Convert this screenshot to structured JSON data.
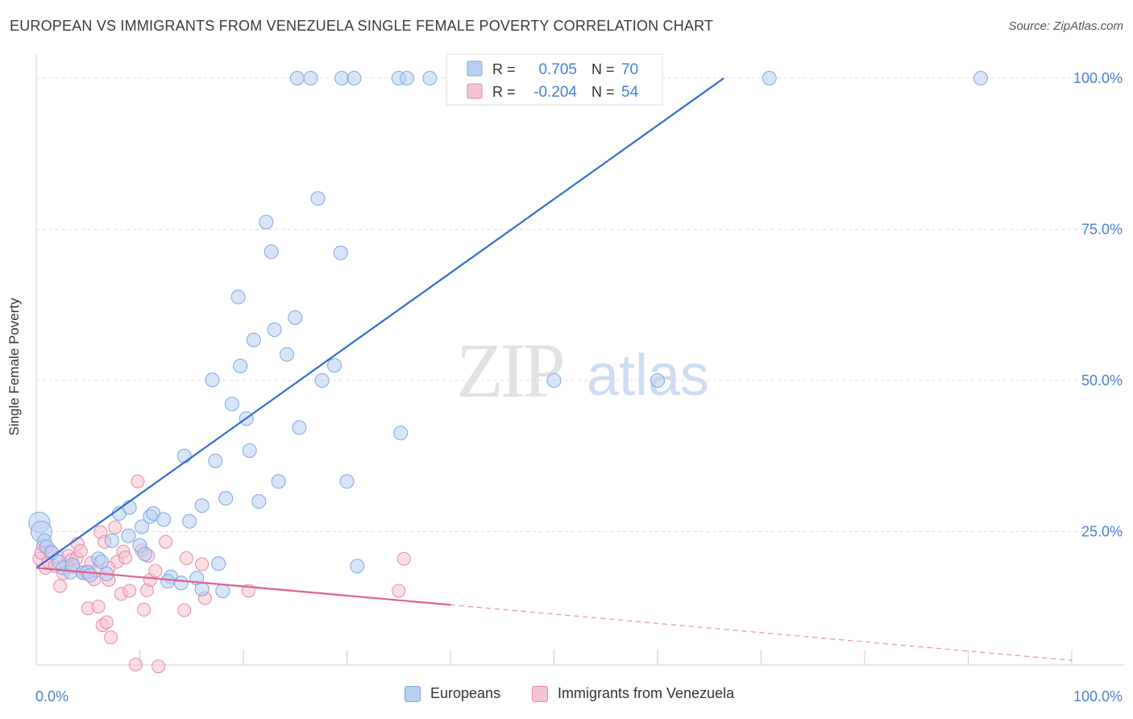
{
  "header": {
    "title": "EUROPEAN VS IMMIGRANTS FROM VENEZUELA SINGLE FEMALE POVERTY CORRELATION CHART",
    "source": "Source: ZipAtlas.com"
  },
  "watermark": {
    "zip": "ZIP",
    "atlas": "atlas"
  },
  "colors": {
    "blue_fill": "#b8d0f2",
    "blue_stroke": "#7fa8e0",
    "blue_line": "#2f6fcf",
    "pink_fill": "#f6c3d2",
    "pink_stroke": "#e88aa8",
    "pink_line": "#e0608e",
    "tick_label": "#4a7fd0",
    "grid": "#dddddd"
  },
  "stats_legend": {
    "rows": [
      {
        "r_label": "R =",
        "r_value": "0.705",
        "n_label": "N =",
        "n_value": "70"
      },
      {
        "r_label": "R =",
        "r_value": "-0.204",
        "n_label": "N =",
        "n_value": "54"
      }
    ]
  },
  "chart_data": {
    "type": "scatter",
    "xlabel": "",
    "ylabel": "Single Female Poverty",
    "xlim": [
      0,
      100
    ],
    "ylim": [
      0,
      100
    ],
    "x_tick_labels": [
      "0.0%",
      "100.0%"
    ],
    "y_tick_labels": [
      "25.0%",
      "50.0%",
      "75.0%",
      "100.0%"
    ],
    "y_ticks": [
      25,
      50,
      75,
      100
    ],
    "grid": true,
    "legend_position": "bottom-center",
    "series": [
      {
        "name": "Europeans",
        "color": "#b8d0f2",
        "r": 0.705,
        "n": 70,
        "trend": {
          "x": [
            0,
            66.4
          ],
          "y": [
            19.0,
            100
          ],
          "style": "solid"
        },
        "points": [
          [
            0.3,
            26.5
          ],
          [
            0.5,
            25
          ],
          [
            0.8,
            23.5
          ],
          [
            1.0,
            22.5
          ],
          [
            1.5,
            21.5
          ],
          [
            2.2,
            20
          ],
          [
            2.6,
            19
          ],
          [
            3.3,
            18.3
          ],
          [
            3.5,
            19.5
          ],
          [
            4.5,
            18.2
          ],
          [
            5.0,
            18.3
          ],
          [
            5.2,
            17.8
          ],
          [
            6,
            20.5
          ],
          [
            6.3,
            20
          ],
          [
            6.8,
            18
          ],
          [
            7.3,
            23.5
          ],
          [
            8.0,
            28
          ],
          [
            9.0,
            29
          ],
          [
            8.9,
            24.3
          ],
          [
            10,
            22.7
          ],
          [
            10.2,
            25.8
          ],
          [
            10.5,
            21.3
          ],
          [
            11,
            27.5
          ],
          [
            11.3,
            28
          ],
          [
            12.3,
            27
          ],
          [
            13,
            17.5
          ],
          [
            12.7,
            16.8
          ],
          [
            14,
            16.5
          ],
          [
            14.3,
            37.5
          ],
          [
            14.8,
            26.7
          ],
          [
            15.5,
            17.3
          ],
          [
            16,
            15.5
          ],
          [
            16,
            29.3
          ],
          [
            17,
            50.1
          ],
          [
            17.3,
            36.7
          ],
          [
            17.6,
            19.7
          ],
          [
            18,
            15.2
          ],
          [
            18.3,
            30.5
          ],
          [
            18.9,
            46.1
          ],
          [
            19.5,
            63.8
          ],
          [
            19.7,
            52.4
          ],
          [
            20.3,
            43.7
          ],
          [
            20.6,
            38.4
          ],
          [
            21,
            56.7
          ],
          [
            21.5,
            30
          ],
          [
            22.2,
            76.2
          ],
          [
            22.7,
            71.3
          ],
          [
            23,
            58.4
          ],
          [
            23.4,
            33.3
          ],
          [
            24.2,
            54.3
          ],
          [
            25,
            60.4
          ],
          [
            25.4,
            42.2
          ],
          [
            27.2,
            80.1
          ],
          [
            27.6,
            50
          ],
          [
            28.8,
            52.5
          ],
          [
            29.4,
            71.1
          ],
          [
            30.0,
            33.3
          ],
          [
            31.0,
            19.3
          ],
          [
            35.2,
            41.3
          ],
          [
            50,
            50
          ],
          [
            60,
            50
          ],
          [
            25.2,
            100
          ],
          [
            26.5,
            100
          ],
          [
            29.5,
            100
          ],
          [
            30.7,
            100
          ],
          [
            35.0,
            100
          ],
          [
            35.8,
            100
          ],
          [
            38.0,
            100
          ],
          [
            70.8,
            100
          ],
          [
            91.2,
            100
          ]
        ],
        "big_points": [
          [
            0.3,
            26.5
          ],
          [
            0.5,
            25
          ],
          [
            1.0,
            23.5
          ]
        ]
      },
      {
        "name": "Immigrants from Venezuela",
        "color": "#f6c3d2",
        "r": -0.204,
        "n": 54,
        "trend": {
          "x": [
            0,
            100
          ],
          "y": [
            19.0,
            3.7
          ],
          "solid_until_x": 40,
          "style": "solid-then-dashed"
        },
        "points": [
          [
            0.3,
            20.5
          ],
          [
            0.5,
            21.5
          ],
          [
            0.7,
            22.7
          ],
          [
            0.9,
            19
          ],
          [
            1.2,
            20
          ],
          [
            1.4,
            21.8
          ],
          [
            1.8,
            19.3
          ],
          [
            2.1,
            20.7
          ],
          [
            2.3,
            16
          ],
          [
            2.6,
            18.1
          ],
          [
            2.9,
            19.5
          ],
          [
            3.1,
            21
          ],
          [
            3.4,
            20.3
          ],
          [
            3.6,
            19.2
          ],
          [
            3.9,
            20.6
          ],
          [
            4.0,
            23
          ],
          [
            4.3,
            21.8
          ],
          [
            4.6,
            18.1
          ],
          [
            4.8,
            18.3
          ],
          [
            5.0,
            12.3
          ],
          [
            5.3,
            19.8
          ],
          [
            5.6,
            17.1
          ],
          [
            5.8,
            18.5
          ],
          [
            6.0,
            12.6
          ],
          [
            6.2,
            24.9
          ],
          [
            6.4,
            9.5
          ],
          [
            6.6,
            23.3
          ],
          [
            6.8,
            10
          ],
          [
            7.0,
            17
          ],
          [
            7.2,
            7.5
          ],
          [
            7.6,
            25.7
          ],
          [
            7.8,
            20
          ],
          [
            8.2,
            14.7
          ],
          [
            8.4,
            21.7
          ],
          [
            8.6,
            20.7
          ],
          [
            9.0,
            15.2
          ],
          [
            9.6,
            3
          ],
          [
            9.8,
            33.3
          ],
          [
            10.2,
            21.9
          ],
          [
            10.4,
            12.1
          ],
          [
            10.7,
            15.3
          ],
          [
            11.0,
            17
          ],
          [
            11.5,
            18.5
          ],
          [
            11.8,
            2.7
          ],
          [
            12.5,
            23.3
          ],
          [
            14.3,
            12
          ],
          [
            14.5,
            20.6
          ],
          [
            16.0,
            19.6
          ],
          [
            16.3,
            14
          ],
          [
            20.5,
            15.2
          ],
          [
            35.0,
            15.2
          ],
          [
            35.5,
            20.5
          ],
          [
            10.8,
            21
          ],
          [
            7.0,
            19
          ]
        ]
      }
    ]
  },
  "bottom_legend": {
    "items": [
      {
        "label": "Europeans"
      },
      {
        "label": "Immigrants from Venezuela"
      }
    ]
  }
}
